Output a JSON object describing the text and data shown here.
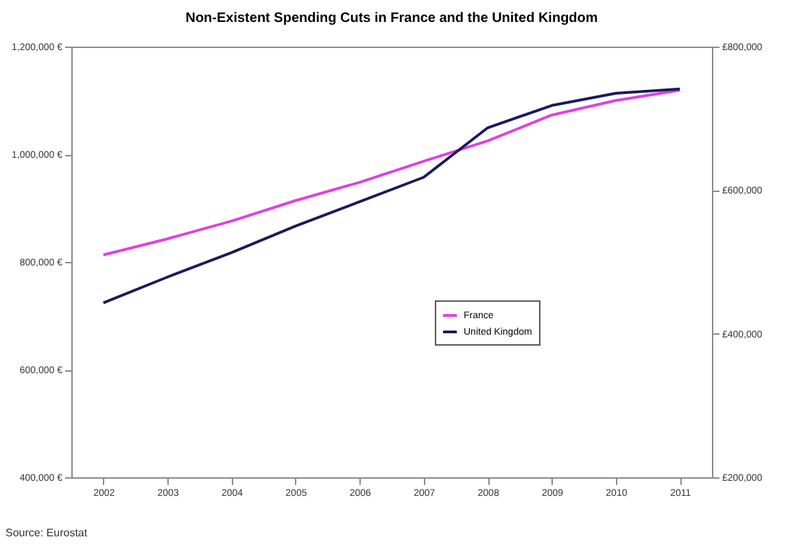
{
  "chart_data": {
    "type": "line",
    "title": "Non-Existent Spending Cuts in France and the United Kingdom",
    "categories": [
      "2002",
      "2003",
      "2004",
      "2005",
      "2006",
      "2007",
      "2008",
      "2009",
      "2010",
      "2011"
    ],
    "series": [
      {
        "name": "France",
        "color": "#e040e0",
        "values": [
          813000,
          843000,
          876000,
          914000,
          948000,
          987000,
          1025000,
          1073000,
          1100000,
          1119000
        ]
      },
      {
        "name": "United Kingdom",
        "color": "#1a1a5a",
        "axis": "y2",
        "values": [
          443000,
          479000,
          513000,
          550000,
          584000,
          618000,
          687000,
          718000,
          735000,
          741000
        ]
      }
    ],
    "ylim": [
      400000,
      1200000
    ],
    "yticks": [
      {
        "value": 400000,
        "label": "400,000 €"
      },
      {
        "value": 600000,
        "label": "600,000 €"
      },
      {
        "value": 800000,
        "label": "800,000 €"
      },
      {
        "value": 1000000,
        "label": "1,000,000 €"
      },
      {
        "value": 1200000,
        "label": "1,200,000 €"
      }
    ],
    "y2lim": [
      200000,
      800000
    ],
    "y2ticks": [
      {
        "value": 200000,
        "label": "£200,000"
      },
      {
        "value": 400000,
        "label": "£400,000"
      },
      {
        "value": 600000,
        "label": "£600,000"
      },
      {
        "value": 800000,
        "label": "£800,000"
      }
    ],
    "grid": false,
    "legend": "right",
    "annotations": [
      "Source: Eurostat"
    ]
  }
}
